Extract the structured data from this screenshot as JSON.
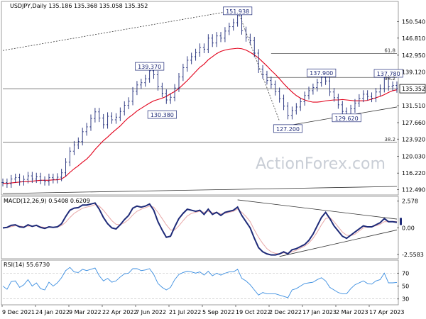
{
  "chart_data": [
    {
      "type": "line",
      "panel": "price",
      "title": "USDJPY,Daily",
      "ohlc_readout": "135.186 135.368 135.058 135.352",
      "last_price_label": "135.352",
      "ylim": [
        111.6,
        154.8
      ],
      "y_ticks": [
        112.49,
        116.22,
        120.03,
        123.92,
        127.66,
        131.51,
        135.352,
        139.12,
        142.95,
        146.81,
        150.54
      ],
      "y_tick_labels": [
        "112.490",
        "116.220",
        "120.030",
        "123.920",
        "127.660",
        "131.510",
        "135.352",
        "139.120",
        "142.950",
        "146.810",
        "150.540"
      ],
      "x_labels": [
        "9 Dec 2021",
        "24 Jan 2022",
        "9 Mar 2022",
        "22 Apr 2022",
        "7 Jun 2022",
        "21 Jul 2022",
        "5 Sep 2022",
        "19 Oct 2022",
        "2 Dec 2022",
        "17 Jan 2023",
        "2 Mar 2023",
        "17 Apr 2023"
      ],
      "series": [
        {
          "values": [
            114.1,
            113.8,
            114.9,
            115.2,
            114.3,
            114.8,
            115.6,
            114.9,
            115.4,
            114.6,
            114.3,
            115.2,
            114.8,
            115.3,
            116.3,
            118.7,
            121.2,
            122.6,
            123.4,
            125.6,
            126.7,
            128.6,
            130.1,
            128.7,
            127.2,
            129.1,
            128.3,
            128.9,
            130.2,
            131.6,
            132.5,
            134.8,
            136.2,
            136.7,
            137.6,
            139.4,
            138.5,
            135.8,
            134.3,
            132.8,
            133.4,
            135.5,
            138.0,
            140.1,
            141.8,
            142.6,
            143.5,
            144.7,
            144.3,
            146.8,
            145.7,
            147.3,
            146.8,
            148.4,
            149.4,
            150.3,
            151.9,
            148.5,
            146.9,
            146.2,
            143.4,
            139.8,
            138.5,
            137.2,
            136.3,
            134.7,
            133.1,
            131.4,
            129.3,
            130.4,
            131.2,
            132.4,
            133.8,
            134.9,
            135.6,
            136.7,
            137.9,
            137.1,
            134.6,
            133.3,
            131.7,
            130.2,
            129.6,
            130.8,
            132.1,
            133.2,
            134.1,
            133.6,
            133.2,
            134.6,
            135.4,
            137.8,
            135.8,
            136.1,
            135.35
          ]
        },
        {
          "values": [
            113.9,
            113.9,
            114.0,
            114.1,
            114.2,
            114.3,
            114.3,
            114.4,
            114.5,
            114.6,
            114.6,
            114.6,
            114.7,
            114.7,
            114.9,
            115.5,
            116.4,
            117.2,
            117.9,
            118.7,
            119.4,
            120.4,
            121.6,
            122.6,
            123.6,
            124.4,
            125.3,
            126.1,
            126.9,
            127.9,
            128.8,
            129.5,
            130.3,
            130.9,
            131.5,
            132.1,
            132.6,
            132.9,
            133.2,
            133.6,
            134.2,
            134.7,
            135.4,
            136.3,
            137.2,
            138.2,
            139.2,
            140.2,
            140.9,
            141.9,
            142.6,
            143.3,
            143.8,
            144.1,
            144.3,
            144.4,
            144.5,
            144.4,
            144.1,
            143.6,
            143.0,
            142.3,
            141.4,
            140.5,
            139.5,
            138.6,
            137.6,
            136.5,
            135.5,
            134.6,
            133.8,
            133.2,
            132.8,
            132.5,
            132.3,
            132.3,
            132.4,
            132.6,
            132.7,
            132.8,
            132.8,
            132.9,
            132.8,
            132.7,
            132.6,
            132.6,
            132.6,
            132.7,
            133.0,
            133.3,
            133.6,
            134.0,
            134.5,
            134.9,
            135.1
          ]
        }
      ],
      "annotations": [
        {
          "label": "151.938",
          "x": 56,
          "y": 151.938,
          "side": "top"
        },
        {
          "label": "139.370",
          "x": 35,
          "y": 139.37,
          "side": "top"
        },
        {
          "label": "130.380",
          "x": 38,
          "y": 130.38,
          "side": "bottom"
        },
        {
          "label": "137.900",
          "x": 76,
          "y": 137.9,
          "side": "top"
        },
        {
          "label": "137.780",
          "x": 92,
          "y": 137.78,
          "side": "top"
        },
        {
          "label": "129.620",
          "x": 82,
          "y": 129.62,
          "side": "bottom"
        },
        {
          "label": "127.200",
          "x": 68,
          "y": 127.2,
          "side": "bottom"
        }
      ],
      "fib_labels": [
        {
          "label": "61.8",
          "y": 143.3
        },
        {
          "label": "38.2",
          "y": 137.0
        },
        {
          "label": "38.2",
          "y": 123.2
        }
      ],
      "h_levels": [
        135.352,
        137.9,
        123.2,
        143.3
      ],
      "watermark": "ActionForex.com"
    },
    {
      "type": "line",
      "panel": "macd",
      "title": "MACD(12,26,9) 0.5408 0.6209",
      "ylim": [
        -2.9,
        2.9
      ],
      "y_ticks": [
        2.578,
        0.0,
        -2.5583
      ],
      "y_tick_labels": [
        "2.578",
        "0.00",
        "-2.5583"
      ],
      "current_value_label": "0.6209",
      "series": [
        {
          "values": [
            0.0,
            0.05,
            0.25,
            0.3,
            0.1,
            0.05,
            0.3,
            0.15,
            0.25,
            0.05,
            -0.05,
            0.1,
            0.05,
            0.1,
            0.4,
            1.1,
            1.7,
            1.9,
            1.95,
            2.2,
            2.2,
            2.3,
            2.4,
            1.8,
            1.0,
            0.4,
            0.0,
            -0.1,
            0.3,
            0.8,
            1.2,
            1.9,
            2.1,
            2.0,
            2.1,
            2.3,
            1.7,
            0.6,
            -0.2,
            -0.9,
            -0.8,
            0.1,
            0.9,
            1.4,
            1.8,
            1.7,
            1.6,
            1.7,
            1.3,
            1.8,
            1.3,
            1.5,
            1.2,
            1.5,
            1.6,
            1.7,
            2.0,
            1.2,
            0.6,
            0.0,
            -1.0,
            -1.9,
            -2.3,
            -2.5,
            -2.6,
            -2.6,
            -2.5,
            -2.3,
            -2.5,
            -2.1,
            -2.0,
            -1.8,
            -1.6,
            -1.2,
            -0.6,
            0.2,
            1.0,
            1.5,
            0.9,
            0.2,
            -0.3,
            -0.8,
            -1.0,
            -0.7,
            -0.4,
            -0.1,
            0.2,
            0.1,
            0.1,
            0.3,
            0.5,
            0.9,
            0.6,
            0.6,
            0.54
          ]
        },
        {
          "values": [
            0.0,
            0.02,
            0.12,
            0.2,
            0.18,
            0.12,
            0.18,
            0.17,
            0.2,
            0.12,
            0.05,
            0.07,
            0.06,
            0.08,
            0.22,
            0.55,
            1.0,
            1.4,
            1.65,
            1.9,
            2.0,
            2.1,
            2.25,
            2.1,
            1.7,
            1.2,
            0.7,
            0.35,
            0.3,
            0.5,
            0.8,
            1.25,
            1.6,
            1.8,
            1.95,
            2.1,
            2.0,
            1.5,
            0.9,
            0.3,
            -0.2,
            -0.2,
            0.2,
            0.7,
            1.15,
            1.4,
            1.5,
            1.6,
            1.5,
            1.6,
            1.45,
            1.5,
            1.35,
            1.4,
            1.5,
            1.6,
            1.8,
            1.5,
            1.1,
            0.6,
            -0.2,
            -0.9,
            -1.5,
            -2.0,
            -2.3,
            -2.45,
            -2.5,
            -2.4,
            -2.45,
            -2.3,
            -2.15,
            -1.95,
            -1.75,
            -1.45,
            -1.0,
            -0.4,
            0.3,
            0.9,
            1.0,
            0.6,
            0.1,
            -0.4,
            -0.7,
            -0.75,
            -0.6,
            -0.3,
            0.0,
            0.1,
            0.1,
            0.2,
            0.35,
            0.6,
            0.6,
            0.62,
            0.6209
          ]
        }
      ]
    },
    {
      "type": "line",
      "panel": "rsi",
      "title": "RSI(14) 55.6730",
      "ylim": [
        22,
        88
      ],
      "y_ticks": [
        70,
        50,
        30
      ],
      "y_tick_labels": [
        "70",
        "50",
        "30"
      ],
      "series": [
        {
          "values": [
            50,
            45,
            57,
            58,
            48,
            52,
            60,
            50,
            55,
            46,
            44,
            56,
            50,
            55,
            63,
            74,
            79,
            72,
            71,
            76,
            74,
            76,
            78,
            66,
            58,
            62,
            56,
            58,
            64,
            69,
            70,
            77,
            77,
            74,
            75,
            77,
            68,
            54,
            48,
            44,
            48,
            60,
            68,
            71,
            73,
            72,
            70,
            72,
            67,
            73,
            66,
            70,
            67,
            70,
            72,
            72,
            76,
            62,
            58,
            52,
            44,
            36,
            40,
            38,
            38,
            38,
            36,
            34,
            32,
            44,
            46,
            50,
            54,
            55,
            56,
            60,
            63,
            58,
            48,
            44,
            40,
            38,
            38,
            46,
            52,
            55,
            58,
            54,
            53,
            58,
            60,
            70,
            55,
            55,
            55.67
          ]
        }
      ]
    }
  ]
}
